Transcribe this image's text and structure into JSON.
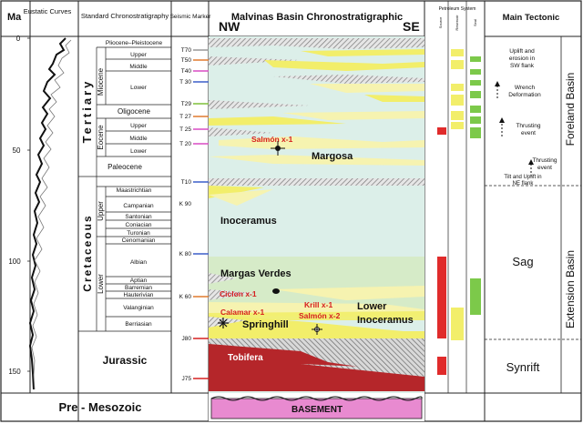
{
  "header": {
    "ma": "Ma",
    "eustatic": "Eustatic Curves",
    "strat": "Standard Chronostratigraphy",
    "seismic": "Seismic Marker",
    "nw": "NW",
    "title": "Malvinas Basin Chronostratigraphic",
    "se": "SE",
    "petroleum": "Petroleum System",
    "source": "Source",
    "reservoir": "Reservoir",
    "seal": "Seal",
    "tectonic": "Main Tectonic"
  },
  "ma_ticks": [
    "0",
    "50",
    "100",
    "150"
  ],
  "periods": {
    "tertiary": "Tertiary",
    "cretaceous": "Cretaceous",
    "jurassic": "Jurassic",
    "pre_mesozoic": "Pre - Mesozoic"
  },
  "epochs": {
    "miocene": "Miocene",
    "eocene": "Eocene",
    "upper": "Upper",
    "lower": "Lower"
  },
  "stages": {
    "plio": "Pliocene–Pleistocene",
    "mio_upper": "Upper",
    "mio_middle": "Middle",
    "mio_lower": "Lower",
    "oligocene": "Oligocene",
    "eo_upper": "Upper",
    "eo_middle": "Middle",
    "eo_lower": "Lower",
    "paleocene": "Paleocene",
    "maastrichtian": "Maastrichtian",
    "campanian": "Campanian",
    "santonian": "Santonian",
    "coniacian": "Coniacian",
    "turonian": "Turonian",
    "cenomanian": "Cenomanian",
    "albian": "Albian",
    "aptian": "Aptian",
    "barremian": "Barremian",
    "hauterivian": "Hauterivian",
    "valanginian": "Valanginian",
    "berriasian": "Berriasian"
  },
  "markers": {
    "t70": "T70",
    "t50": "T50",
    "t40": "T40",
    "t30": "T 30",
    "t29": "T29",
    "t27": "T 27",
    "t25": "T 25",
    "t20": "T 20",
    "t10": "T10",
    "k90": "K 90",
    "k80": "K 80",
    "k60": "K 60",
    "j80": "J80",
    "j75": "J75"
  },
  "units": {
    "margosa": "Margosa",
    "inoceramus": "Inoceramus",
    "margas_verdes": "Margas Verdes",
    "lower_inoceramus_1": "Lower",
    "lower_inoceramus_2": "Inoceramus",
    "springhill": "Springhill",
    "tobifera": "Tobifera",
    "basement": "BASEMENT"
  },
  "wells": {
    "salmon_x1": "Salmón x-1",
    "ciclon_x1": "Ciclon x-1",
    "calamar_x1": "Calamar x-1",
    "krill_x1": "Krill x-1",
    "salmon_x2": "Salmón x-2"
  },
  "tectonic": {
    "uplift_sw_1": "Uplift and",
    "uplift_sw_2": "erosion in",
    "uplift_sw_3": "SW flank",
    "wrench_1": "Wrench",
    "wrench_2": "Deformation",
    "thrust1_1": "Thrusting",
    "thrust1_2": "event",
    "thrust2_1": "Thrusting",
    "thrust2_2": "event",
    "tilt_1": "Tilt and Uplift in",
    "tilt_2": "NE flank",
    "sag": "Sag",
    "synrift": "Synrift",
    "foreland": "Foreland Basin",
    "extension": "Extension Basin"
  },
  "colors": {
    "ocean": "#dcefe9",
    "yellow": "#f2ee6a",
    "pale_yellow": "#f6f3b0",
    "green": "#7cc94a",
    "red": "#e02b2b",
    "tobifera": "#b5262a",
    "basement": "#e88ad0",
    "hatch": "#9a9a9a"
  }
}
